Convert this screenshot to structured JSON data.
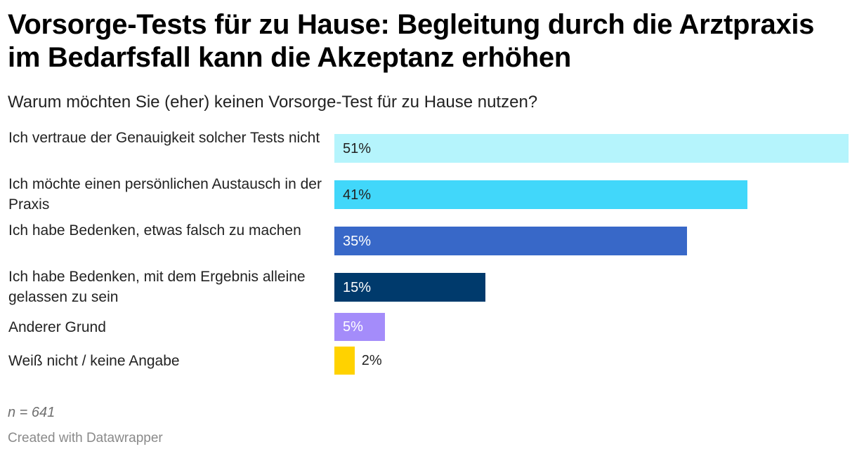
{
  "header": {
    "title": "Vorsorge-Tests für zu Hause: Begleitung durch die Arztpraxis im Bedarfsfall kann die Akzeptanz erhöhen",
    "subtitle": "Warum möchten Sie (eher) keinen Vorsorge-Test für zu Hause nutzen?"
  },
  "chart_data": {
    "type": "bar",
    "orientation": "horizontal",
    "title": "Vorsorge-Tests für zu Hause: Begleitung durch die Arztpraxis im Bedarfsfall kann die Akzeptanz erhöhen",
    "subtitle": "Warum möchten Sie (eher) keinen Vorsorge-Test für zu Hause nutzen?",
    "categories": [
      "Ich vertraue der Genauigkeit solcher Tests nicht",
      "Ich möchte einen persönlichen Austausch in der Praxis",
      "Ich habe Bedenken, etwas falsch zu machen",
      "Ich habe Bedenken, mit dem Ergebnis alleine gelassen zu sein",
      "Anderer Grund",
      "Weiß nicht / keine Angabe"
    ],
    "values": [
      51,
      41,
      35,
      15,
      5,
      2
    ],
    "value_labels": [
      "51%",
      "41%",
      "35%",
      "15%",
      "5%",
      "2%"
    ],
    "colors": [
      "#b5f4fc",
      "#41d7fa",
      "#3868c8",
      "#003a6c",
      "#a48cfa",
      "#ffd200"
    ],
    "label_colors": [
      "#222222",
      "#222222",
      "#ffffff",
      "#ffffff",
      "#ffffff",
      "#222222"
    ],
    "unit": "%",
    "xlim": [
      0,
      51
    ],
    "xlabel": "",
    "ylabel": "",
    "grid": false
  },
  "footer": {
    "note": "n = 641",
    "credit": "Created with Datawrapper"
  }
}
